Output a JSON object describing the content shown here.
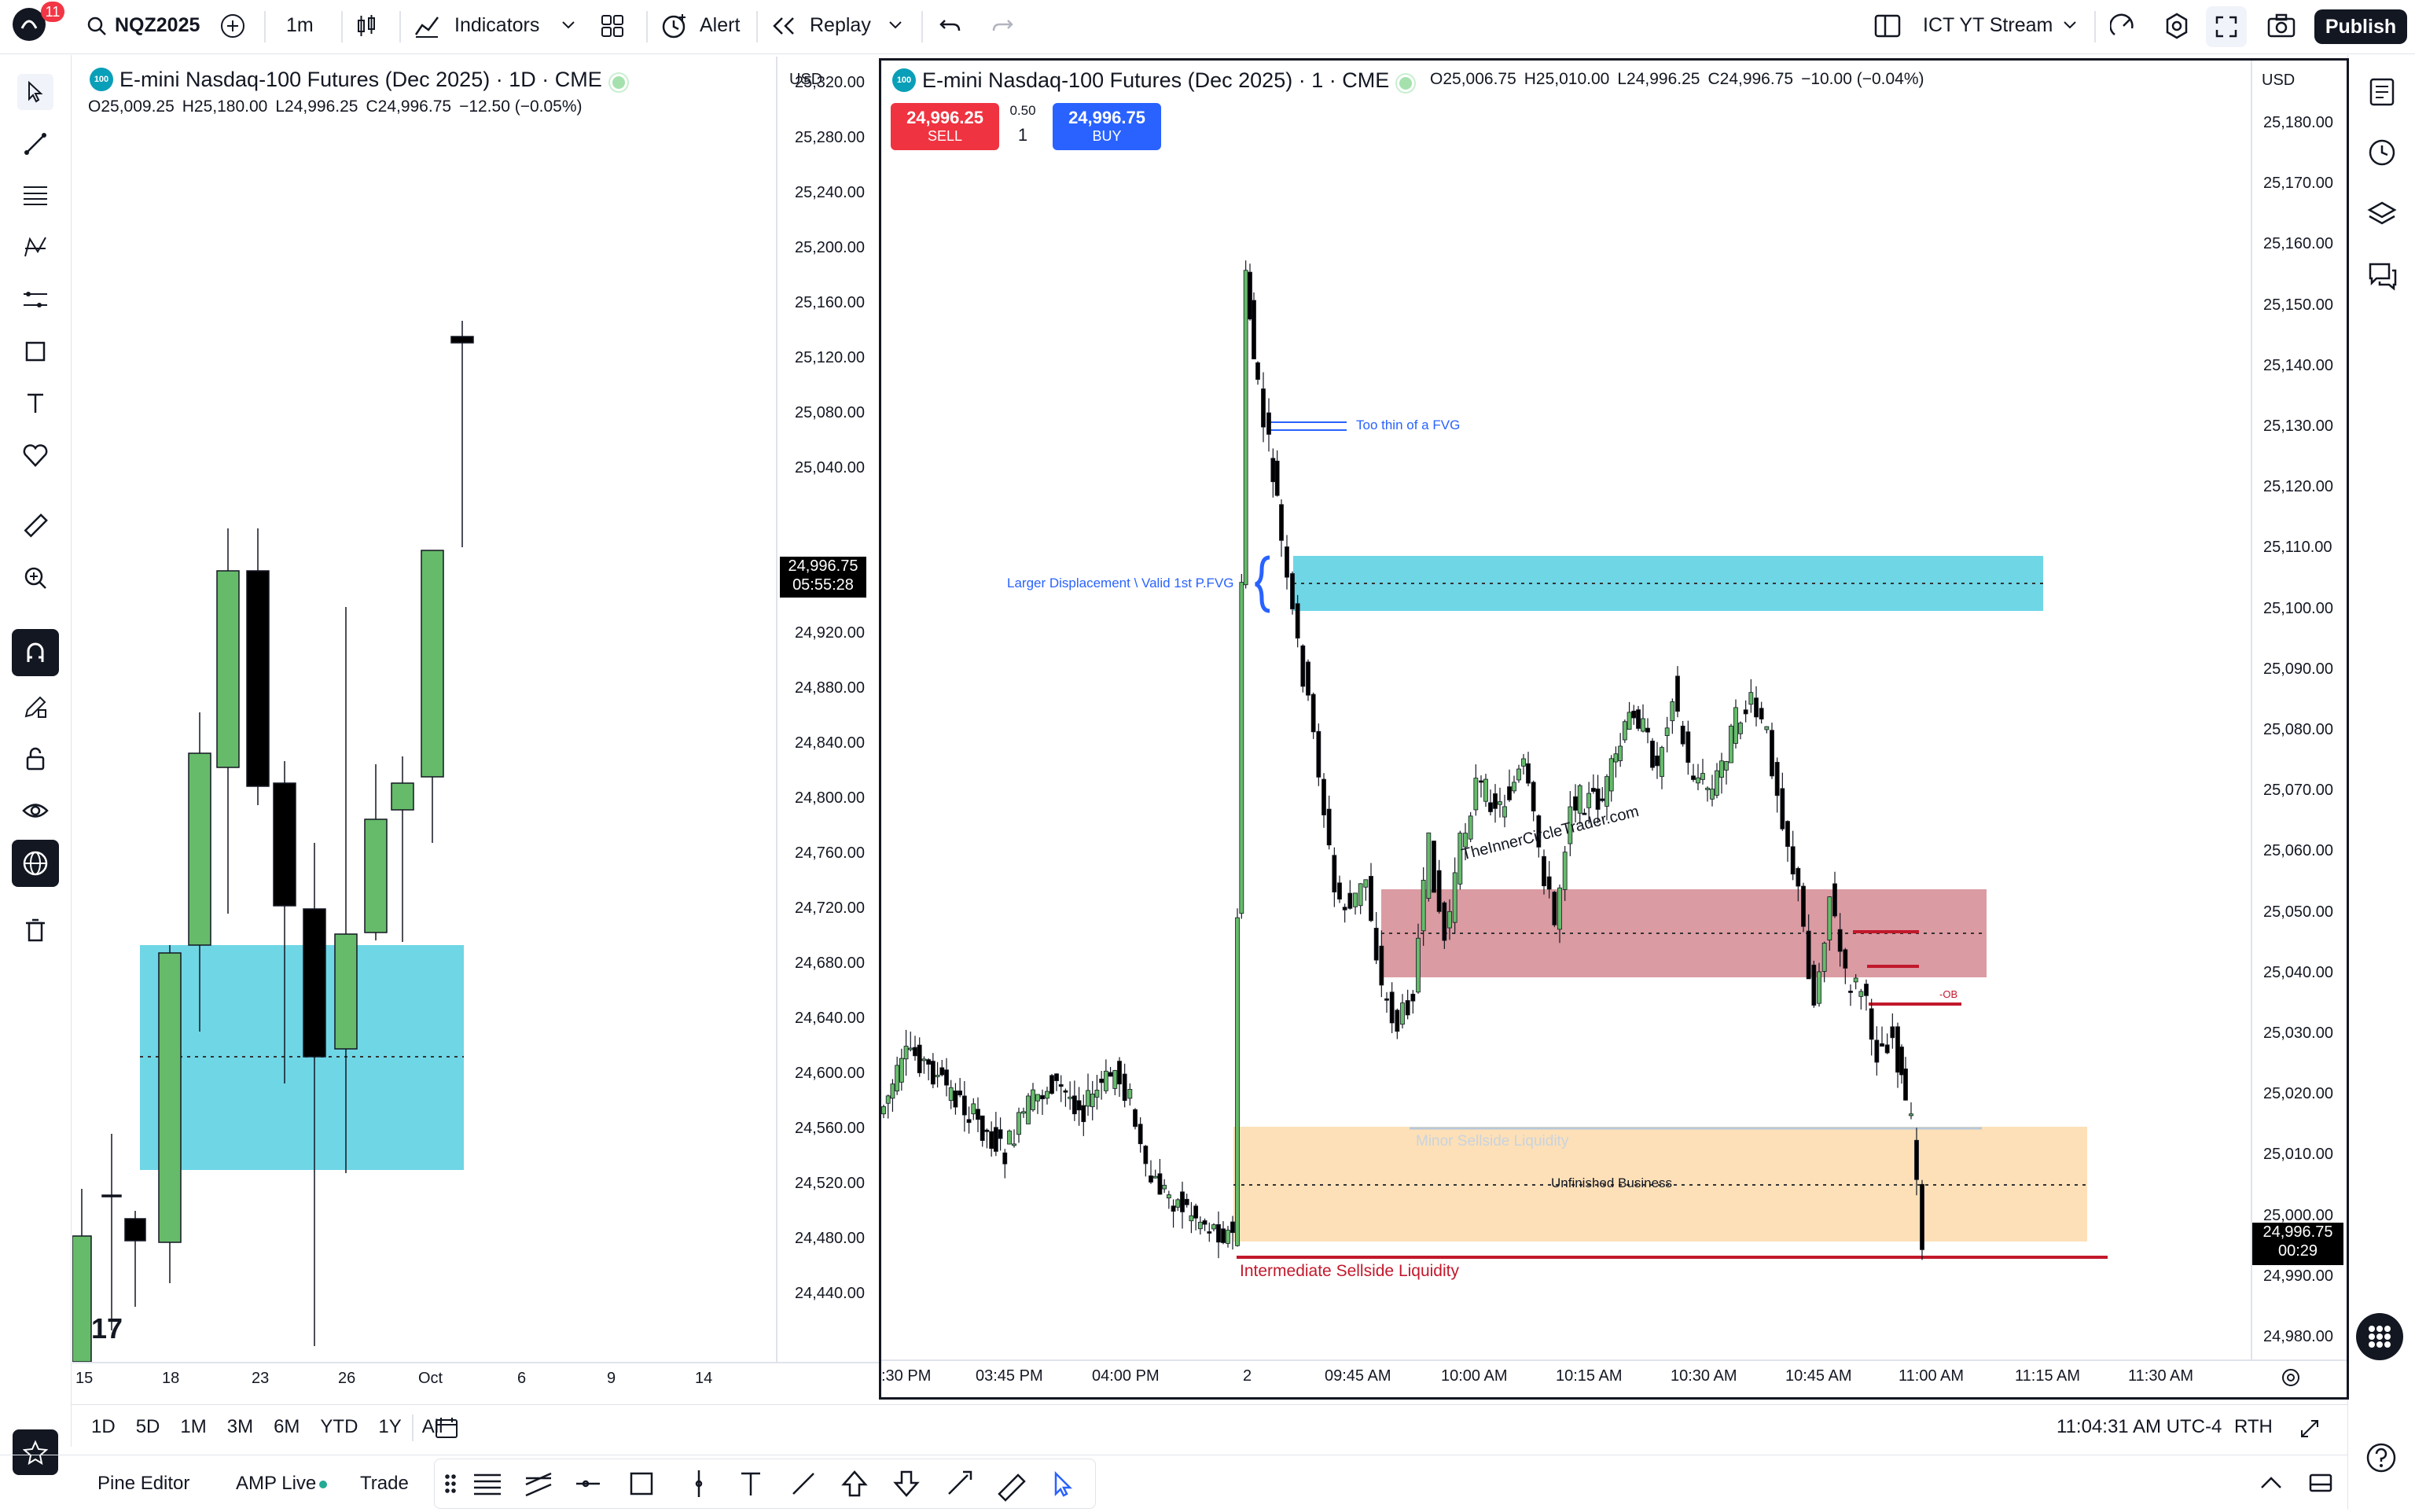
{
  "header": {
    "notifications": "11",
    "symbol": "NQZ2025",
    "interval": "1m",
    "indicators": "Indicators",
    "alert": "Alert",
    "replay": "Replay",
    "layout_name": "ICT YT Stream",
    "publish": "Publish"
  },
  "left_chart": {
    "title": "E-mini Nasdaq-100 Futures (Dec 2025) · 1D · CME",
    "logo": "100",
    "ohlc": {
      "o": "O25,009.25",
      "h": "H25,180.00",
      "l": "L24,996.25",
      "c": "C24,996.75",
      "chg": "−12.50 (−0.05%)"
    },
    "currency": "USD",
    "price_ticks": [
      "25,320.00",
      "25,280.00",
      "25,240.00",
      "25,200.00",
      "25,160.00",
      "25,120.00",
      "25,080.00",
      "25,040.00",
      "24,960.00",
      "24,920.00",
      "24,880.00",
      "24,840.00",
      "24,800.00",
      "24,760.00",
      "24,720.00",
      "24,680.00",
      "24,640.00",
      "24,600.00",
      "24,560.00",
      "24,520.00",
      "24,480.00",
      "24,440.00"
    ],
    "last_price": "24,996.75",
    "countdown": "05:55:28",
    "time_ticks": [
      "15",
      "18",
      "23",
      "26",
      "Oct",
      "6",
      "9",
      "14"
    ]
  },
  "right_chart": {
    "title": "E-mini Nasdaq-100 Futures (Dec 2025) · 1 · CME",
    "logo": "100",
    "ohlc": {
      "o": "O25,006.75",
      "h": "H25,010.00",
      "l": "L24,996.25",
      "c": "C24,996.75",
      "chg": "−10.00 (−0.04%)"
    },
    "currency": "USD",
    "sell_price": "24,996.25",
    "sell_label": "SELL",
    "spread": "0.50",
    "qty": "1",
    "buy_price": "24,996.75",
    "buy_label": "BUY",
    "price_ticks": [
      "25,180.00",
      "25,170.00",
      "25,160.00",
      "25,150.00",
      "25,140.00",
      "25,130.00",
      "25,120.00",
      "25,110.00",
      "25,100.00",
      "25,090.00",
      "25,080.00",
      "25,070.00",
      "25,060.00",
      "25,050.00",
      "25,040.00",
      "25,030.00",
      "25,020.00",
      "25,010.00",
      "25,000.00",
      "24,990.00",
      "24,980.00"
    ],
    "last_price": "24,996.75",
    "countdown": "00:29",
    "time_ticks": [
      ":30 PM",
      "03:45 PM",
      "04:00 PM",
      "2",
      "09:45 AM",
      "10:00 AM",
      "10:15 AM",
      "10:30 AM",
      "10:45 AM",
      "11:00 AM",
      "11:15 AM",
      "11:30 AM"
    ],
    "annotations": {
      "thin_fvg": "Too thin of a FVG",
      "valid_fvg": "Larger Displacement \\ Valid 1st P.FVG",
      "watermark": "TheInnerCircleTrader.com",
      "ob": "-OB",
      "minor_ssl": "Minor Sellside Liquidity",
      "unfinished": "Unfinished Business",
      "intermediate_ssl": "Intermediate Sellside Liquidity"
    }
  },
  "footer": {
    "ranges": [
      "1D",
      "5D",
      "1M",
      "3M",
      "6M",
      "YTD",
      "1Y",
      "All"
    ],
    "clock": "11:04:31 AM UTC-4",
    "session": "RTH",
    "tabs": [
      "Pine Editor",
      "AMP Live",
      "Trade"
    ]
  },
  "colors": {
    "up": "#66bb6a",
    "down": "#000000",
    "fvg": "#6fd6e6",
    "ob_zone": "#d58a92",
    "unfinished_zone": "#fde0b8",
    "sell": "#ef3340",
    "buy": "#2962ff",
    "ssl_line": "#c2182b"
  }
}
